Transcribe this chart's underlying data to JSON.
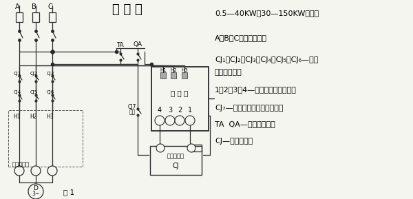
{
  "title": "接 线 图",
  "background_color": "#f5f5f0",
  "fig_width": 6.0,
  "fig_height": 2.89,
  "right_labels": [
    "0.5—40KW、30—150KW接线图",
    "A、B、C、一三相电源",
    "CJ₁、CJ₂、CJ₃、CJ₄、CJ₅、CJ₆—交流",
    "接触器主触头",
    "1、2、3、4—保护器接线端子号码",
    "CJ₇—交流接触器辅助常开触头",
    "TA  QA—停止起动按鈕",
    "CJ—接触器线圈"
  ],
  "label_baohuqi": "保 护 器",
  "label_jiechuqi": "接触器线圈",
  "label_chuandao": "穿过导线孔",
  "lc": "#2a2a2a",
  "gray": "#555555"
}
